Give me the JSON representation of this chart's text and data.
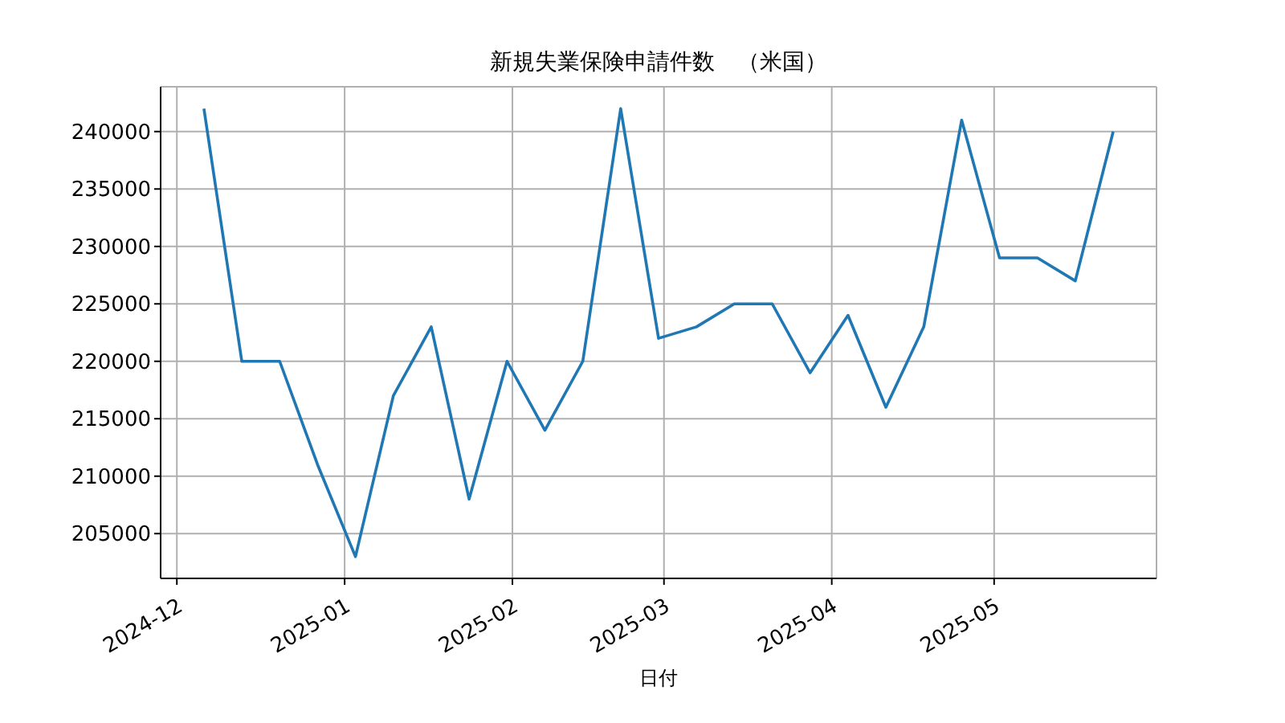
{
  "chart_data": {
    "type": "line",
    "title": "新規失業保険申請件数　（米国）",
    "xlabel": "日付",
    "x": [
      "2024-12-06",
      "2024-12-13",
      "2024-12-20",
      "2024-12-27",
      "2025-01-03",
      "2025-01-10",
      "2025-01-17",
      "2025-01-24",
      "2025-01-31",
      "2025-02-07",
      "2025-02-14",
      "2025-02-21",
      "2025-02-28",
      "2025-03-07",
      "2025-03-14",
      "2025-03-21",
      "2025-03-28",
      "2025-04-04",
      "2025-04-11",
      "2025-04-18",
      "2025-04-25",
      "2025-05-02",
      "2025-05-09",
      "2025-05-16",
      "2025-05-23"
    ],
    "series": [
      {
        "color": "#1f77b4",
        "values": [
          242000,
          220000,
          220000,
          211000,
          203000,
          217000,
          223000,
          208000,
          220000,
          214000,
          220000,
          242000,
          222000,
          223000,
          225000,
          225000,
          219000,
          224000,
          216000,
          223000,
          241000,
          229000,
          229000,
          227000,
          240000
        ]
      }
    ],
    "xlim": [
      "2024-11-28",
      "2025-05-31"
    ],
    "xticks": [
      {
        "value": "2024-12-01",
        "label": "2024-12"
      },
      {
        "value": "2025-01-01",
        "label": "2025-01"
      },
      {
        "value": "2025-02-01",
        "label": "2025-02"
      },
      {
        "value": "2025-03-01",
        "label": "2025-03"
      },
      {
        "value": "2025-04-01",
        "label": "2025-04"
      },
      {
        "value": "2025-05-01",
        "label": "2025-05"
      }
    ],
    "ylim": [
      201100,
      243900
    ],
    "yticks": [
      205000,
      210000,
      215000,
      220000,
      225000,
      230000,
      235000,
      240000
    ],
    "grid": true,
    "legend": false,
    "marker": "none",
    "line_style": "solid"
  }
}
